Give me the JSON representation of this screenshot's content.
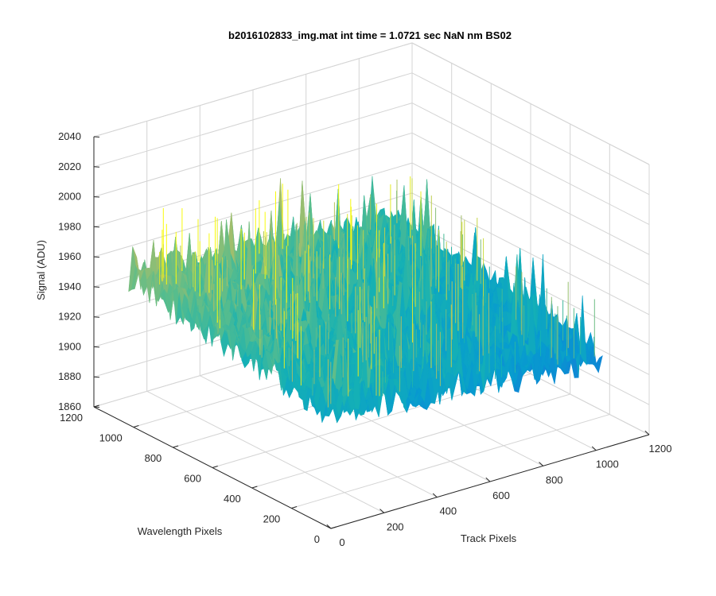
{
  "chart_data": {
    "type": "surface",
    "title": "b2016102833_img.mat int time = 1.0721 sec  NaN nm BS02",
    "xlabel": "Track Pixels",
    "ylabel": "Wavelength Pixels",
    "zlabel": "Signal (ADU)",
    "xlim": [
      0,
      1200
    ],
    "ylim": [
      0,
      1200
    ],
    "zlim": [
      1860,
      2040
    ],
    "x_ticks": [
      0,
      200,
      400,
      600,
      800,
      1000,
      1200
    ],
    "y_ticks": [
      0,
      200,
      400,
      600,
      800,
      1000,
      1200
    ],
    "z_ticks": [
      1860,
      1880,
      1900,
      1920,
      1940,
      1960,
      1980,
      2000,
      2020,
      2040
    ],
    "data_extent": {
      "x": [
        0,
        1024
      ],
      "y": [
        0,
        1024
      ]
    },
    "signal_mean_range": [
      1920,
      1960
    ],
    "signal_peak": 2000,
    "signal_min": 1860,
    "colormap": "parula",
    "grid": true
  }
}
